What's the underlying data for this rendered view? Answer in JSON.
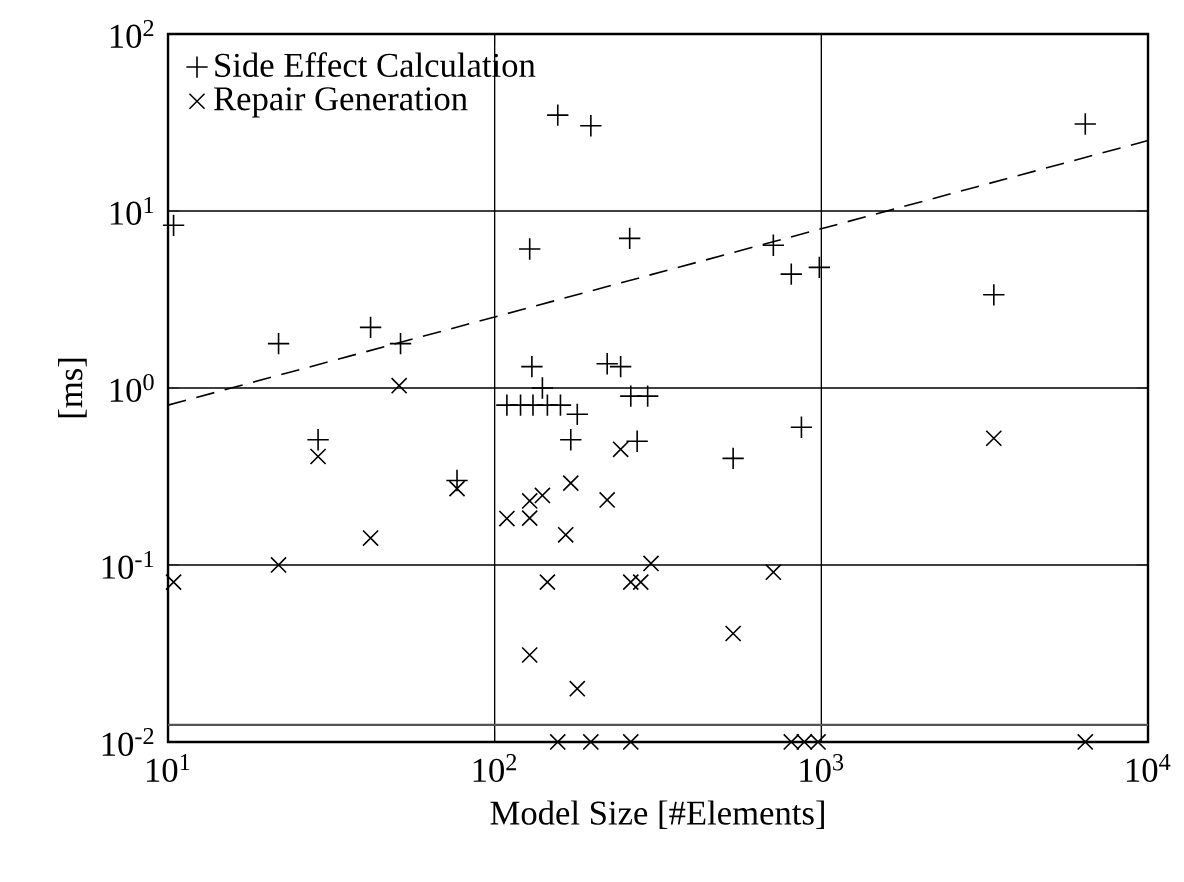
{
  "chart_data": {
    "type": "scatter",
    "xlabel": "Model Size [#Elements]",
    "ylabel": "[ms]",
    "log": "xy",
    "grid": true,
    "legend": "top left",
    "xlim": [
      10,
      10000
    ],
    "ylim": [
      0.01,
      100
    ],
    "xticks": [
      {
        "value": 10,
        "label": "10$^{1}$"
      },
      {
        "value": 100,
        "label": "10$^{2}$"
      },
      {
        "value": 1000,
        "label": "10$^{3}$"
      },
      {
        "value": 10000,
        "label": "10$^{4}$"
      }
    ],
    "yticks": [
      {
        "value": 0.01,
        "label": "10$^{-2}$"
      },
      {
        "value": 0.1,
        "label": "10$^{-1}$"
      },
      {
        "value": 1,
        "label": "10$^{0}$"
      },
      {
        "value": 10,
        "label": "10$^{1}$"
      },
      {
        "value": 100,
        "label": "10$^{2}$"
      }
    ],
    "ref_lines": [
      {
        "axis": "y",
        "value": 0.0125,
        "color": "#555555"
      }
    ],
    "series": [
      {
        "name": "Side Effect Calculation",
        "color": "#000000",
        "marker": "plus",
        "x": [
          10.4,
          21.8,
          41.7,
          51.5,
          128,
          156,
          197,
          259,
          130,
          221,
          243,
          6427,
          713,
          809,
          986,
          3373,
          28.8,
          76.7,
          109,
          120,
          131,
          145,
          159,
          140,
          179,
          171,
          273,
          261,
          294,
          869,
          537
        ],
        "values": [
          8.3,
          1.78,
          2.2,
          1.78,
          6.1,
          34.8,
          30.3,
          7.0,
          1.32,
          1.37,
          1.32,
          31.0,
          6.4,
          4.4,
          4.8,
          3.36,
          0.51,
          0.3,
          0.8,
          0.8,
          0.8,
          0.8,
          0.8,
          1.0,
          0.71,
          0.51,
          0.5,
          0.9,
          0.9,
          0.6,
          0.4
        ]
      },
      {
        "name": "Repair Generation",
        "color": "#000000",
        "marker": "cross",
        "x": [
          10.4,
          21.8,
          41.7,
          51,
          28.8,
          76.7,
          109,
          128,
          128,
          140,
          171,
          165,
          221,
          243,
          145,
          261,
          280,
          301,
          713,
          537,
          128,
          179,
          156,
          197,
          261,
          809,
          887,
          977,
          6427,
          3373
        ],
        "values": [
          0.08,
          0.1,
          0.142,
          1.03,
          0.41,
          0.27,
          0.183,
          0.184,
          0.23,
          0.247,
          0.29,
          0.148,
          0.233,
          0.45,
          0.08,
          0.08,
          0.08,
          0.102,
          0.091,
          0.041,
          0.031,
          0.02,
          0.01,
          0.01,
          0.01,
          0.01,
          0.01,
          0.01,
          0.01,
          0.52
        ]
      },
      {
        "type": "line",
        "color": "#000000",
        "line_style": "dashed",
        "marker": "none",
        "x": [
          10,
          10000
        ],
        "values": [
          0.8,
          25
        ]
      }
    ]
  }
}
